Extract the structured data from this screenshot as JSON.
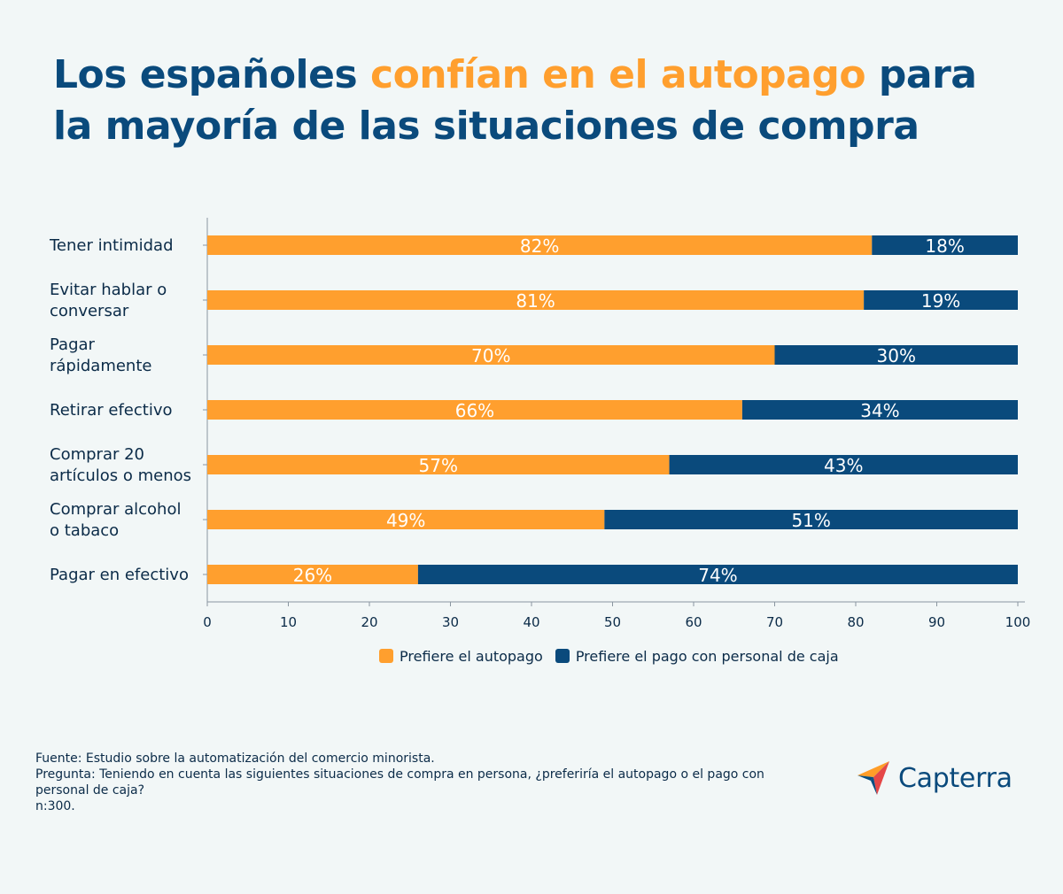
{
  "title": {
    "part1": "Los españoles ",
    "highlight": "confían en el autopago",
    "part2": " para la mayoría de las situaciones de compra"
  },
  "colors": {
    "self_checkout": "#ff9f2e",
    "cashier": "#0a4a7c",
    "background": "#f2f7f7",
    "text": "#0b2b48"
  },
  "chart_data": {
    "type": "bar",
    "orientation": "horizontal",
    "stacked": true,
    "categories": [
      [
        "Tener intimidad"
      ],
      [
        "Evitar hablar o",
        "conversar"
      ],
      [
        "Pagar",
        "rápidamente"
      ],
      [
        "Retirar efectivo"
      ],
      [
        "Comprar 20",
        "artículos o menos"
      ],
      [
        "Comprar alcohol",
        "o tabaco"
      ],
      [
        "Pagar en efectivo"
      ]
    ],
    "series": [
      {
        "name": "Prefiere el autopago",
        "values": [
          82,
          81,
          70,
          66,
          57,
          49,
          26
        ]
      },
      {
        "name": "Prefiere el pago con personal de caja",
        "values": [
          18,
          19,
          30,
          34,
          43,
          51,
          74
        ]
      }
    ],
    "xlim": [
      0,
      100
    ],
    "xticks": [
      0,
      10,
      20,
      30,
      40,
      50,
      60,
      70,
      80,
      90,
      100
    ],
    "value_suffix": "%",
    "grid": false,
    "legend_position": "bottom"
  },
  "legend": [
    {
      "label": "Prefiere el autopago",
      "color": "#ff9f2e"
    },
    {
      "label": "Prefiere el pago con personal de caja",
      "color": "#0a4a7c"
    }
  ],
  "footer": {
    "source": "Fuente: Estudio sobre la automatización del comercio minorista.",
    "question_line1": "Pregunta: Teniendo en cuenta las siguientes situaciones de compra en persona, ¿preferiría el autopago o el pago con",
    "question_line2": "personal de caja?",
    "sample": "n:300."
  },
  "logo": {
    "text": "Capterra",
    "icon": "capterra-logo-icon"
  }
}
